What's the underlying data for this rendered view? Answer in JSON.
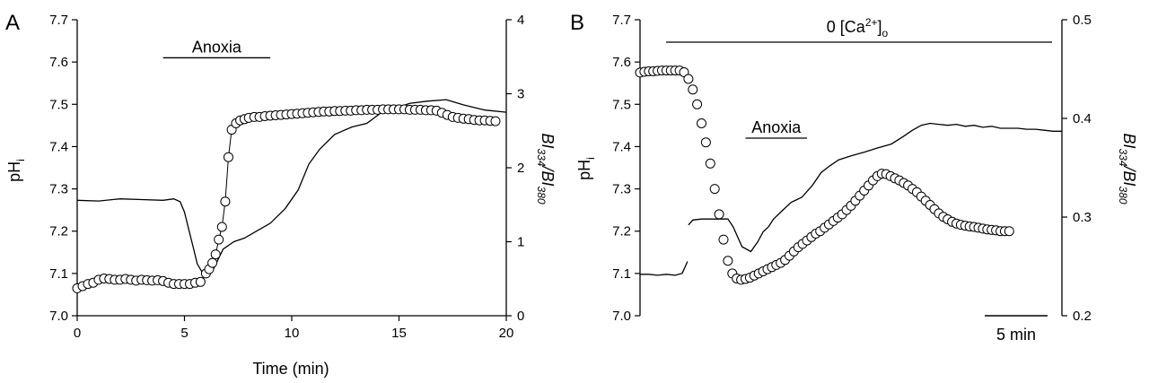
{
  "chart_data": [
    {
      "type": "line",
      "panel_label": "A",
      "xlabel": "Time (min)",
      "ylabel_left": "pHi",
      "ylabel_right": "BI334/BI380",
      "xlim": [
        0,
        20
      ],
      "ylim_left": [
        7.0,
        7.7
      ],
      "ylim_right": [
        0,
        4
      ],
      "x_ticks": [
        "0",
        "5",
        "10",
        "15",
        "20"
      ],
      "y_ticks_left": [
        "7.0",
        "7.1",
        "7.2",
        "7.3",
        "7.4",
        "7.5",
        "7.6",
        "7.7"
      ],
      "y_ticks_right": [
        "0",
        "1",
        "2",
        "3",
        "4"
      ],
      "annotations": [
        {
          "text": "Anoxia",
          "x_start": 4.0,
          "x_end": 9.0,
          "y": 7.61
        }
      ],
      "series": [
        {
          "style": "line",
          "axis": "right",
          "x": [
            0,
            1,
            2,
            3,
            4,
            4.5,
            4.8,
            5.0,
            5.3,
            5.6,
            5.9,
            6.3,
            6.8,
            7.3,
            7.8,
            8.4,
            9.0,
            9.7,
            10.3,
            10.8,
            11.3,
            12.0,
            12.8,
            13.5,
            14.2,
            15.0,
            15.5,
            16.3,
            17.2,
            18.0,
            19.0,
            20.0
          ],
          "y": [
            1.56,
            1.55,
            1.58,
            1.57,
            1.56,
            1.58,
            1.54,
            1.4,
            1.05,
            0.7,
            0.55,
            0.6,
            0.9,
            1.0,
            1.05,
            1.15,
            1.25,
            1.45,
            1.7,
            2.05,
            2.25,
            2.45,
            2.55,
            2.6,
            2.75,
            2.82,
            2.87,
            2.9,
            2.92,
            2.85,
            2.78,
            2.75
          ]
        },
        {
          "style": "markers",
          "axis": "left",
          "x": [
            0,
            0.25,
            0.5,
            0.75,
            1.0,
            1.25,
            1.5,
            1.75,
            2.0,
            2.25,
            2.5,
            2.75,
            3.0,
            3.25,
            3.5,
            3.75,
            4.0,
            4.25,
            4.5,
            4.75,
            5.0,
            5.25,
            5.5,
            5.75,
            6.0,
            6.15,
            6.3,
            6.45,
            6.6,
            6.75,
            6.9,
            7.05,
            7.2,
            7.4,
            7.6,
            7.8,
            8.0,
            8.25,
            8.5,
            8.75,
            9.0,
            9.25,
            9.5,
            9.75,
            10.0,
            10.25,
            10.5,
            10.75,
            11.0,
            11.25,
            11.5,
            11.75,
            12.0,
            12.25,
            12.5,
            12.75,
            13.0,
            13.25,
            13.5,
            13.75,
            14.0,
            14.25,
            14.5,
            14.75,
            15.0,
            15.25,
            15.5,
            15.75,
            16.0,
            16.25,
            16.5,
            16.75,
            17.0,
            17.25,
            17.5,
            17.75,
            18.0,
            18.25,
            18.5,
            18.75,
            19.0,
            19.25,
            19.5
          ],
          "y": [
            7.065,
            7.07,
            7.075,
            7.078,
            7.085,
            7.088,
            7.087,
            7.085,
            7.085,
            7.087,
            7.085,
            7.083,
            7.085,
            7.084,
            7.083,
            7.084,
            7.082,
            7.078,
            7.075,
            7.075,
            7.075,
            7.075,
            7.078,
            7.08,
            7.1,
            7.11,
            7.125,
            7.145,
            7.18,
            7.21,
            7.27,
            7.375,
            7.44,
            7.455,
            7.462,
            7.465,
            7.468,
            7.47,
            7.47,
            7.472,
            7.473,
            7.474,
            7.475,
            7.476,
            7.477,
            7.478,
            7.479,
            7.48,
            7.481,
            7.482,
            7.483,
            7.483,
            7.484,
            7.484,
            7.485,
            7.485,
            7.486,
            7.486,
            7.487,
            7.487,
            7.487,
            7.488,
            7.488,
            7.488,
            7.488,
            7.488,
            7.487,
            7.487,
            7.487,
            7.486,
            7.486,
            7.485,
            7.48,
            7.475,
            7.47,
            7.468,
            7.466,
            7.465,
            7.463,
            7.462,
            7.462,
            7.461,
            7.46
          ]
        }
      ]
    },
    {
      "type": "line",
      "panel_label": "B",
      "ylabel_left": "pHi",
      "ylabel_right": "BI334/BI380",
      "ylim_left": [
        7.0,
        7.7
      ],
      "ylim_right": [
        0.2,
        0.5
      ],
      "y_ticks_left": [
        "7.0",
        "7.1",
        "7.2",
        "7.3",
        "7.4",
        "7.5",
        "7.6",
        "7.7"
      ],
      "y_ticks_right": [
        "0.2",
        "0.3",
        "0.4",
        "0.5"
      ],
      "scale_bar": "5 min",
      "top_bar_label_prefix": "0 [Ca",
      "top_bar_label_sup": "2+",
      "top_bar_label_mid": "]",
      "top_bar_label_sub": "o",
      "annotations": [
        {
          "text": "Anoxia",
          "x_start": 6.0,
          "x_end": 9.5,
          "y": 7.42
        }
      ],
      "series": [
        {
          "style": "line",
          "axis": "right",
          "x": [
            0,
            0.5,
            1.0,
            1.5,
            2.0,
            2.4,
            2.7,
            2.75,
            3.0,
            3.5,
            4.0,
            4.5,
            5.0,
            5.3,
            5.8,
            6.3,
            6.7,
            7.0,
            7.3,
            7.6,
            8.0,
            8.6,
            9.2,
            9.8,
            10.3,
            10.8,
            11.3,
            12.0,
            12.8,
            13.5,
            14.3,
            15.0,
            15.5,
            16.0,
            16.5,
            17.0,
            17.5,
            18.0,
            18.5,
            19.0,
            19.5,
            20.0,
            20.5,
            21.0,
            21.5,
            22.0,
            22.5,
            23.0,
            23.5,
            24.0
          ],
          "y": [
            0.242,
            0.242,
            0.241,
            0.242,
            0.241,
            0.243,
            0.255,
            0.292,
            0.297,
            0.298,
            0.298,
            0.298,
            0.298,
            0.29,
            0.27,
            0.265,
            0.275,
            0.285,
            0.29,
            0.298,
            0.305,
            0.315,
            0.32,
            0.332,
            0.345,
            0.352,
            0.358,
            0.362,
            0.366,
            0.37,
            0.374,
            0.382,
            0.388,
            0.393,
            0.395,
            0.394,
            0.393,
            0.394,
            0.392,
            0.393,
            0.391,
            0.392,
            0.39,
            0.39,
            0.39,
            0.389,
            0.389,
            0.388,
            0.387,
            0.387
          ]
        },
        {
          "style": "markers",
          "axis": "left",
          "x": [
            0,
            0.25,
            0.5,
            0.75,
            1.0,
            1.25,
            1.5,
            1.75,
            2.0,
            2.25,
            2.5,
            2.75,
            3.0,
            3.25,
            3.5,
            3.75,
            4.0,
            4.25,
            4.5,
            4.75,
            5.0,
            5.25,
            5.5,
            5.75,
            6.0,
            6.25,
            6.5,
            6.75,
            7.0,
            7.25,
            7.5,
            7.75,
            8.0,
            8.25,
            8.5,
            8.75,
            9.0,
            9.25,
            9.5,
            9.75,
            10.0,
            10.25,
            10.5,
            10.75,
            11.0,
            11.25,
            11.5,
            11.75,
            12.0,
            12.25,
            12.5,
            12.75,
            13.0,
            13.25,
            13.5,
            13.75,
            14.0,
            14.25,
            14.5,
            14.75,
            15.0,
            15.25,
            15.5,
            15.75,
            16.0,
            16.25,
            16.5,
            16.75,
            17.0,
            17.25,
            17.5,
            17.75,
            18.0,
            18.25,
            18.5,
            18.75,
            19.0,
            19.25,
            19.5,
            19.75,
            20.0,
            20.25,
            20.5,
            20.75,
            21.0
          ],
          "y": [
            7.575,
            7.577,
            7.578,
            7.578,
            7.579,
            7.58,
            7.58,
            7.58,
            7.58,
            7.58,
            7.576,
            7.56,
            7.535,
            7.5,
            7.455,
            7.41,
            7.36,
            7.3,
            7.24,
            7.18,
            7.13,
            7.1,
            7.088,
            7.085,
            7.087,
            7.09,
            7.095,
            7.1,
            7.105,
            7.11,
            7.115,
            7.12,
            7.125,
            7.132,
            7.142,
            7.152,
            7.162,
            7.17,
            7.178,
            7.186,
            7.194,
            7.2,
            7.208,
            7.216,
            7.224,
            7.232,
            7.24,
            7.25,
            7.26,
            7.272,
            7.284,
            7.296,
            7.308,
            7.32,
            7.33,
            7.336,
            7.335,
            7.33,
            7.325,
            7.32,
            7.314,
            7.308,
            7.3,
            7.292,
            7.282,
            7.272,
            7.262,
            7.252,
            7.242,
            7.234,
            7.228,
            7.222,
            7.218,
            7.215,
            7.213,
            7.211,
            7.21,
            7.208,
            7.206,
            7.204,
            7.203,
            7.202,
            7.2,
            7.2,
            7.2
          ]
        }
      ]
    }
  ]
}
